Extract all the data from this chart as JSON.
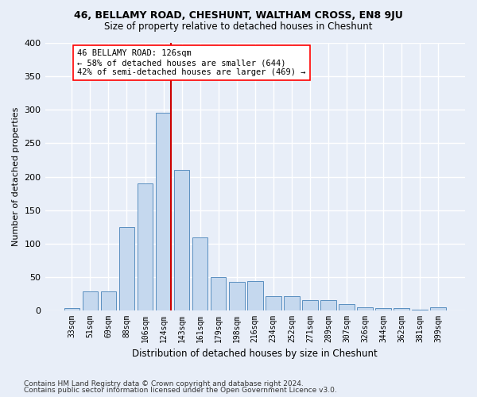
{
  "title1": "46, BELLAMY ROAD, CHESHUNT, WALTHAM CROSS, EN8 9JU",
  "title2": "Size of property relative to detached houses in Cheshunt",
  "xlabel": "Distribution of detached houses by size in Cheshunt",
  "ylabel": "Number of detached properties",
  "footer1": "Contains HM Land Registry data © Crown copyright and database right 2024.",
  "footer2": "Contains public sector information licensed under the Open Government Licence v3.0.",
  "bar_labels": [
    "33sqm",
    "51sqm",
    "69sqm",
    "88sqm",
    "106sqm",
    "124sqm",
    "143sqm",
    "161sqm",
    "179sqm",
    "198sqm",
    "216sqm",
    "234sqm",
    "252sqm",
    "271sqm",
    "289sqm",
    "307sqm",
    "326sqm",
    "344sqm",
    "362sqm",
    "381sqm",
    "399sqm"
  ],
  "bar_values": [
    4,
    29,
    29,
    125,
    190,
    295,
    210,
    109,
    50,
    43,
    44,
    21,
    21,
    15,
    15,
    10,
    5,
    4,
    4,
    1,
    5
  ],
  "bar_color": "#c5d8ee",
  "bar_edge_color": "#5a8fc0",
  "vline_x": 5.42,
  "annotation_text": "46 BELLAMY ROAD: 126sqm\n← 58% of detached houses are smaller (644)\n42% of semi-detached houses are larger (469) →",
  "vline_color": "#cc0000",
  "background_color": "#e8eef8",
  "grid_color": "#ffffff",
  "ylim": [
    0,
    400
  ],
  "yticks": [
    0,
    50,
    100,
    150,
    200,
    250,
    300,
    350,
    400
  ]
}
